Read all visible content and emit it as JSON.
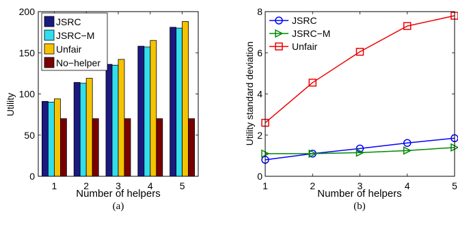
{
  "chart_data": [
    {
      "type": "bar",
      "caption": "(a)",
      "xlabel": "Number of helpers",
      "ylabel": "Utility",
      "categories": [
        "1",
        "2",
        "3",
        "4",
        "5"
      ],
      "ylim": [
        0,
        200
      ],
      "yticks": [
        0,
        50,
        100,
        150,
        200
      ],
      "legend_position": "top-left",
      "series": [
        {
          "name": "JSRC",
          "color": "#1a1a80",
          "values": [
            91,
            114,
            136,
            158,
            181
          ]
        },
        {
          "name": "JSRC−M",
          "color": "#33ddee",
          "values": [
            90,
            113,
            135,
            157,
            180
          ]
        },
        {
          "name": "Unfair",
          "color": "#f5c300",
          "values": [
            94,
            119,
            142,
            165,
            188
          ]
        },
        {
          "name": "No−helper",
          "color": "#7a0000",
          "values": [
            70,
            70,
            70,
            70,
            70
          ]
        }
      ]
    },
    {
      "type": "line",
      "caption": "(b)",
      "xlabel": "Number of helpers",
      "ylabel": "Utility standard deviation",
      "x": [
        1,
        2,
        3,
        4,
        5
      ],
      "xlim": [
        1,
        5
      ],
      "ylim": [
        0,
        8
      ],
      "yticks": [
        0,
        2,
        4,
        6,
        8
      ],
      "legend_position": "top-left",
      "series": [
        {
          "name": "JSRC",
          "color": "#0000ff",
          "marker": "circle",
          "values": [
            0.8,
            1.1,
            1.35,
            1.62,
            1.85
          ]
        },
        {
          "name": "JSRC−M",
          "color": "#008800",
          "marker": "triangle-right",
          "values": [
            1.1,
            1.1,
            1.15,
            1.25,
            1.4
          ]
        },
        {
          "name": "Unfair",
          "color": "#ee0000",
          "marker": "square",
          "values": [
            2.6,
            4.55,
            6.05,
            7.3,
            7.8
          ]
        }
      ]
    }
  ]
}
